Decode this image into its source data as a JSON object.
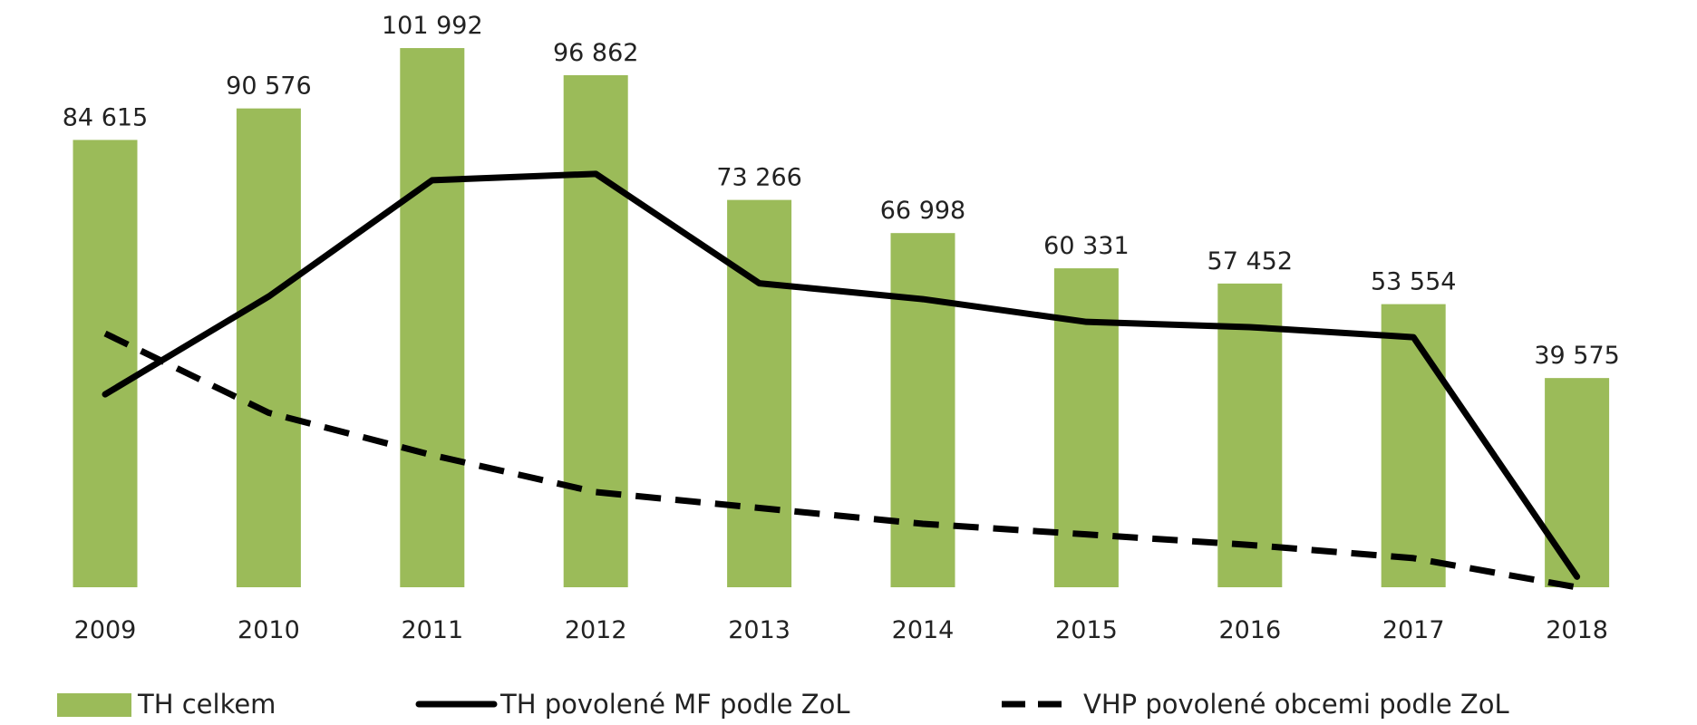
{
  "chart_data": {
    "type": "bar",
    "categories": [
      "2009",
      "2010",
      "2011",
      "2012",
      "2013",
      "2014",
      "2015",
      "2016",
      "2017",
      "2018"
    ],
    "series": [
      {
        "name": "TH celkem",
        "kind": "bar",
        "values": [
          84615,
          90576,
          101992,
          96862,
          73266,
          66998,
          60331,
          57452,
          53554,
          39575
        ],
        "labels": [
          "84 615",
          "90 576",
          "101 992",
          "96 862",
          "73 266",
          "66 998",
          "60 331",
          "57 452",
          "53 554",
          "39 575"
        ],
        "color": "#9bbb59"
      },
      {
        "name": "TH povolené MF podle ZoL",
        "kind": "line",
        "style": "solid",
        "values": [
          36500,
          55000,
          77000,
          78200,
          57500,
          54500,
          50200,
          49200,
          47300,
          2000
        ],
        "color": "#000000"
      },
      {
        "name": "VHP povolené obcemi podle ZoL",
        "kind": "line",
        "style": "dashed",
        "values": [
          48000,
          33000,
          25000,
          18000,
          15000,
          12000,
          10000,
          8000,
          5500,
          0
        ],
        "color": "#000000"
      }
    ],
    "ylim": [
      0,
      108000
    ],
    "grid": false,
    "legend_position": "bottom"
  }
}
